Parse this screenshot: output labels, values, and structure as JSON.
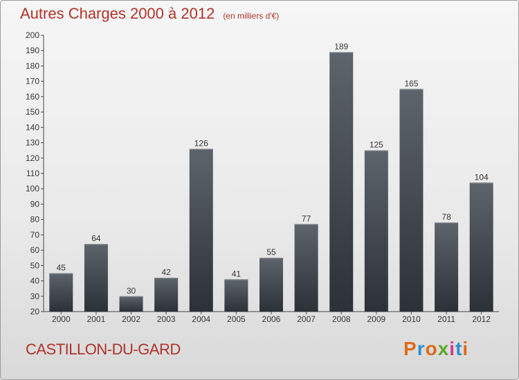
{
  "header": {
    "title": "Autres Charges 2000 à 2012",
    "subtitle": "(en milliers d'€)"
  },
  "footer": {
    "commune": "CASTILLON-DU-GARD",
    "logo": "Proxiti"
  },
  "colors": {
    "title": "#b0332a",
    "bar_top": "#5e646c",
    "bar_bottom": "#2c3037",
    "logo_letters": [
      "#e06a1a",
      "#2f8fd0",
      "#e06a1a",
      "#5aa82a",
      "#d43a8a",
      "#2f8fd0",
      "#e06a1a"
    ]
  },
  "chart_data": {
    "type": "bar",
    "categories": [
      "2000",
      "2001",
      "2002",
      "2003",
      "2004",
      "2005",
      "2006",
      "2007",
      "2008",
      "2009",
      "2010",
      "2011",
      "2012"
    ],
    "values": [
      45,
      64,
      30,
      42,
      126,
      41,
      55,
      77,
      189,
      125,
      165,
      78,
      104
    ],
    "ylim": [
      20,
      200
    ],
    "ytick_step": 10,
    "grid": false,
    "data_labels": true
  }
}
